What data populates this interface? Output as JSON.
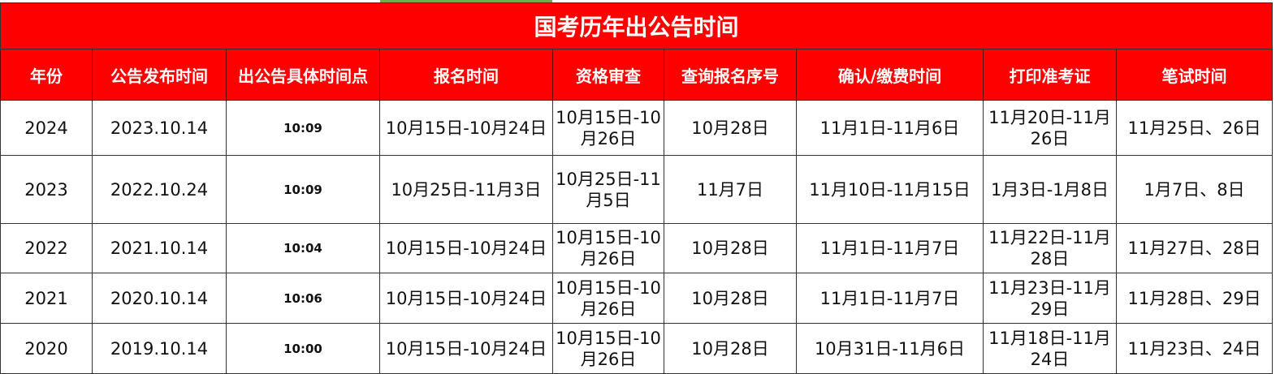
{
  "title": "国考历年出公告时间",
  "colors": {
    "header_bg": "#ff0000",
    "header_text": "#ffffff"
  },
  "columns": [
    "年份",
    "公告发布时间",
    "出公告具体时间点",
    "报名时间",
    "资格审查",
    "查询报名序号",
    "确认/缴费时间",
    "打印准考证",
    "笔试时间"
  ],
  "rows": [
    [
      "2024",
      "2023.10.14",
      "10:09",
      "10月15日-10月24日",
      "10月15日-10月26日",
      "10月28日",
      "11月1日-11月6日",
      "11月20日-11月26日",
      "11月25日、26日"
    ],
    [
      "2023",
      "2022.10.24",
      "10:09",
      "10月25日-11月3日",
      "10月25日-11月5日",
      "11月7日",
      "11月10日-11月15日",
      "1月3日-1月8日",
      "1月7日、8日"
    ],
    [
      "2022",
      "2021.10.14",
      "10:04",
      "10月15日-10月24日",
      "10月15日-10月26日",
      "10月28日",
      "11月1日-11月7日",
      "11月22日-11月28日",
      "11月27日、28日"
    ],
    [
      "2021",
      "2020.10.14",
      "10:06",
      "10月15日-10月24日",
      "10月15日-10月26日",
      "10月28日",
      "11月1日-11月7日",
      "11月23日-11月29日",
      "11月28日、29日"
    ],
    [
      "2020",
      "2019.10.14",
      "10:00",
      "10月15日-10月24日",
      "10月15日-10月26日",
      "10月28日",
      "10月31日-11月6日",
      "11月18日-11月24日",
      "11月23日、24日"
    ]
  ]
}
